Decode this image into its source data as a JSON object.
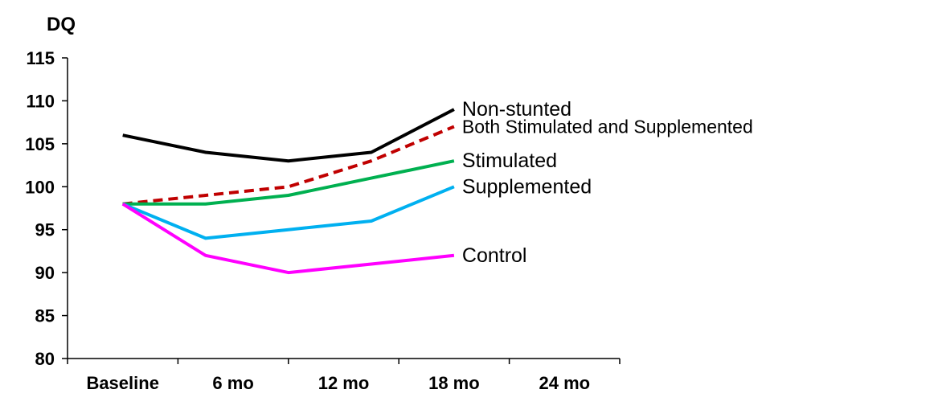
{
  "chart_data": {
    "type": "line",
    "ylabel": "DQ",
    "xlabel": "",
    "title": "",
    "categories": [
      "Baseline",
      "6 mo",
      "12 mo",
      "18 mo",
      "24 mo"
    ],
    "ylim": [
      80,
      115
    ],
    "yticks": [
      80,
      85,
      90,
      95,
      100,
      105,
      110,
      115
    ],
    "grid": false,
    "legend": "inline labels at right end of each line",
    "x": [
      0,
      0.75,
      1.5,
      2.25,
      3.0
    ],
    "series": [
      {
        "name": "Non-stunted",
        "color": "#000000",
        "dashed": false,
        "values": [
          106,
          104,
          103,
          104,
          109
        ]
      },
      {
        "name": "Both Stimulated and Supplemented",
        "color": "#c00000",
        "dashed": true,
        "values": [
          98,
          99,
          100,
          103,
          107
        ]
      },
      {
        "name": "Stimulated",
        "color": "#00b050",
        "dashed": false,
        "values": [
          98,
          98,
          99,
          101,
          103
        ]
      },
      {
        "name": "Supplemented",
        "color": "#00b0f0",
        "dashed": false,
        "values": [
          98,
          94,
          95,
          96,
          100
        ]
      },
      {
        "name": "Control",
        "color": "#ff00ff",
        "dashed": false,
        "values": [
          98,
          92,
          90,
          91,
          92
        ]
      }
    ]
  }
}
